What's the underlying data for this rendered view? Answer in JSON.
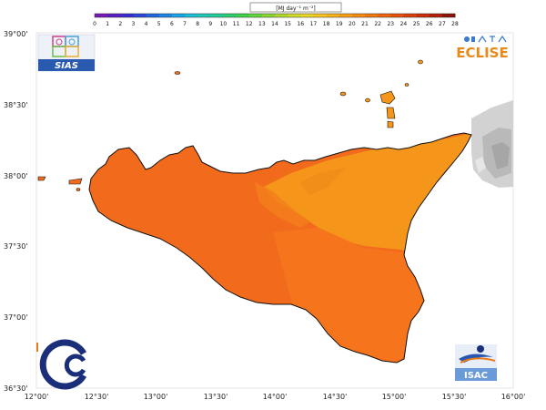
{
  "colorbar": {
    "unit_label": "[MJ day⁻¹ m⁻²]",
    "ticks": [
      "0",
      "1",
      "2",
      "3",
      "4",
      "5",
      "6",
      "7",
      "8",
      "9",
      "10",
      "11",
      "12",
      "13",
      "14",
      "15",
      "16",
      "17",
      "18",
      "19",
      "20",
      "21",
      "22",
      "23",
      "24",
      "25",
      "26",
      "27",
      "28"
    ],
    "colors": [
      "#7a1ab8",
      "#5a1fc4",
      "#3a2cd0",
      "#2b46d8",
      "#2166e0",
      "#1c86e6",
      "#19a4e8",
      "#1bbdd8",
      "#1ec8b8",
      "#22cc96",
      "#2ccf6e",
      "#3fd34a",
      "#62d63a",
      "#8ad832",
      "#b0da2e",
      "#d2dc2a",
      "#ecd826",
      "#f6c81f",
      "#f8b418",
      "#f8a014",
      "#f78c12",
      "#f47810",
      "#f0660e",
      "#e8520c",
      "#dc400a",
      "#cc2e08",
      "#b41e08",
      "#8e1206"
    ]
  },
  "axes": {
    "lat_labels": [
      "39°00'",
      "38°30'",
      "38°00'",
      "37°30'",
      "37°00'",
      "36°30'"
    ],
    "lon_labels": [
      "12°00'",
      "12°30'",
      "13°00'",
      "13°30'",
      "14°00'",
      "14°30'",
      "15°00'",
      "15°30'",
      "16°00'"
    ]
  },
  "logos": {
    "sias_text": "SIAS",
    "eclise_text": "ECLISE",
    "isac_text": "ISAC"
  },
  "map_colors": {
    "west": "#f26b1c",
    "south": "#f5741c",
    "northeast": "#f5961a",
    "outline": "#111111",
    "terrain": "#c8c8c8"
  }
}
